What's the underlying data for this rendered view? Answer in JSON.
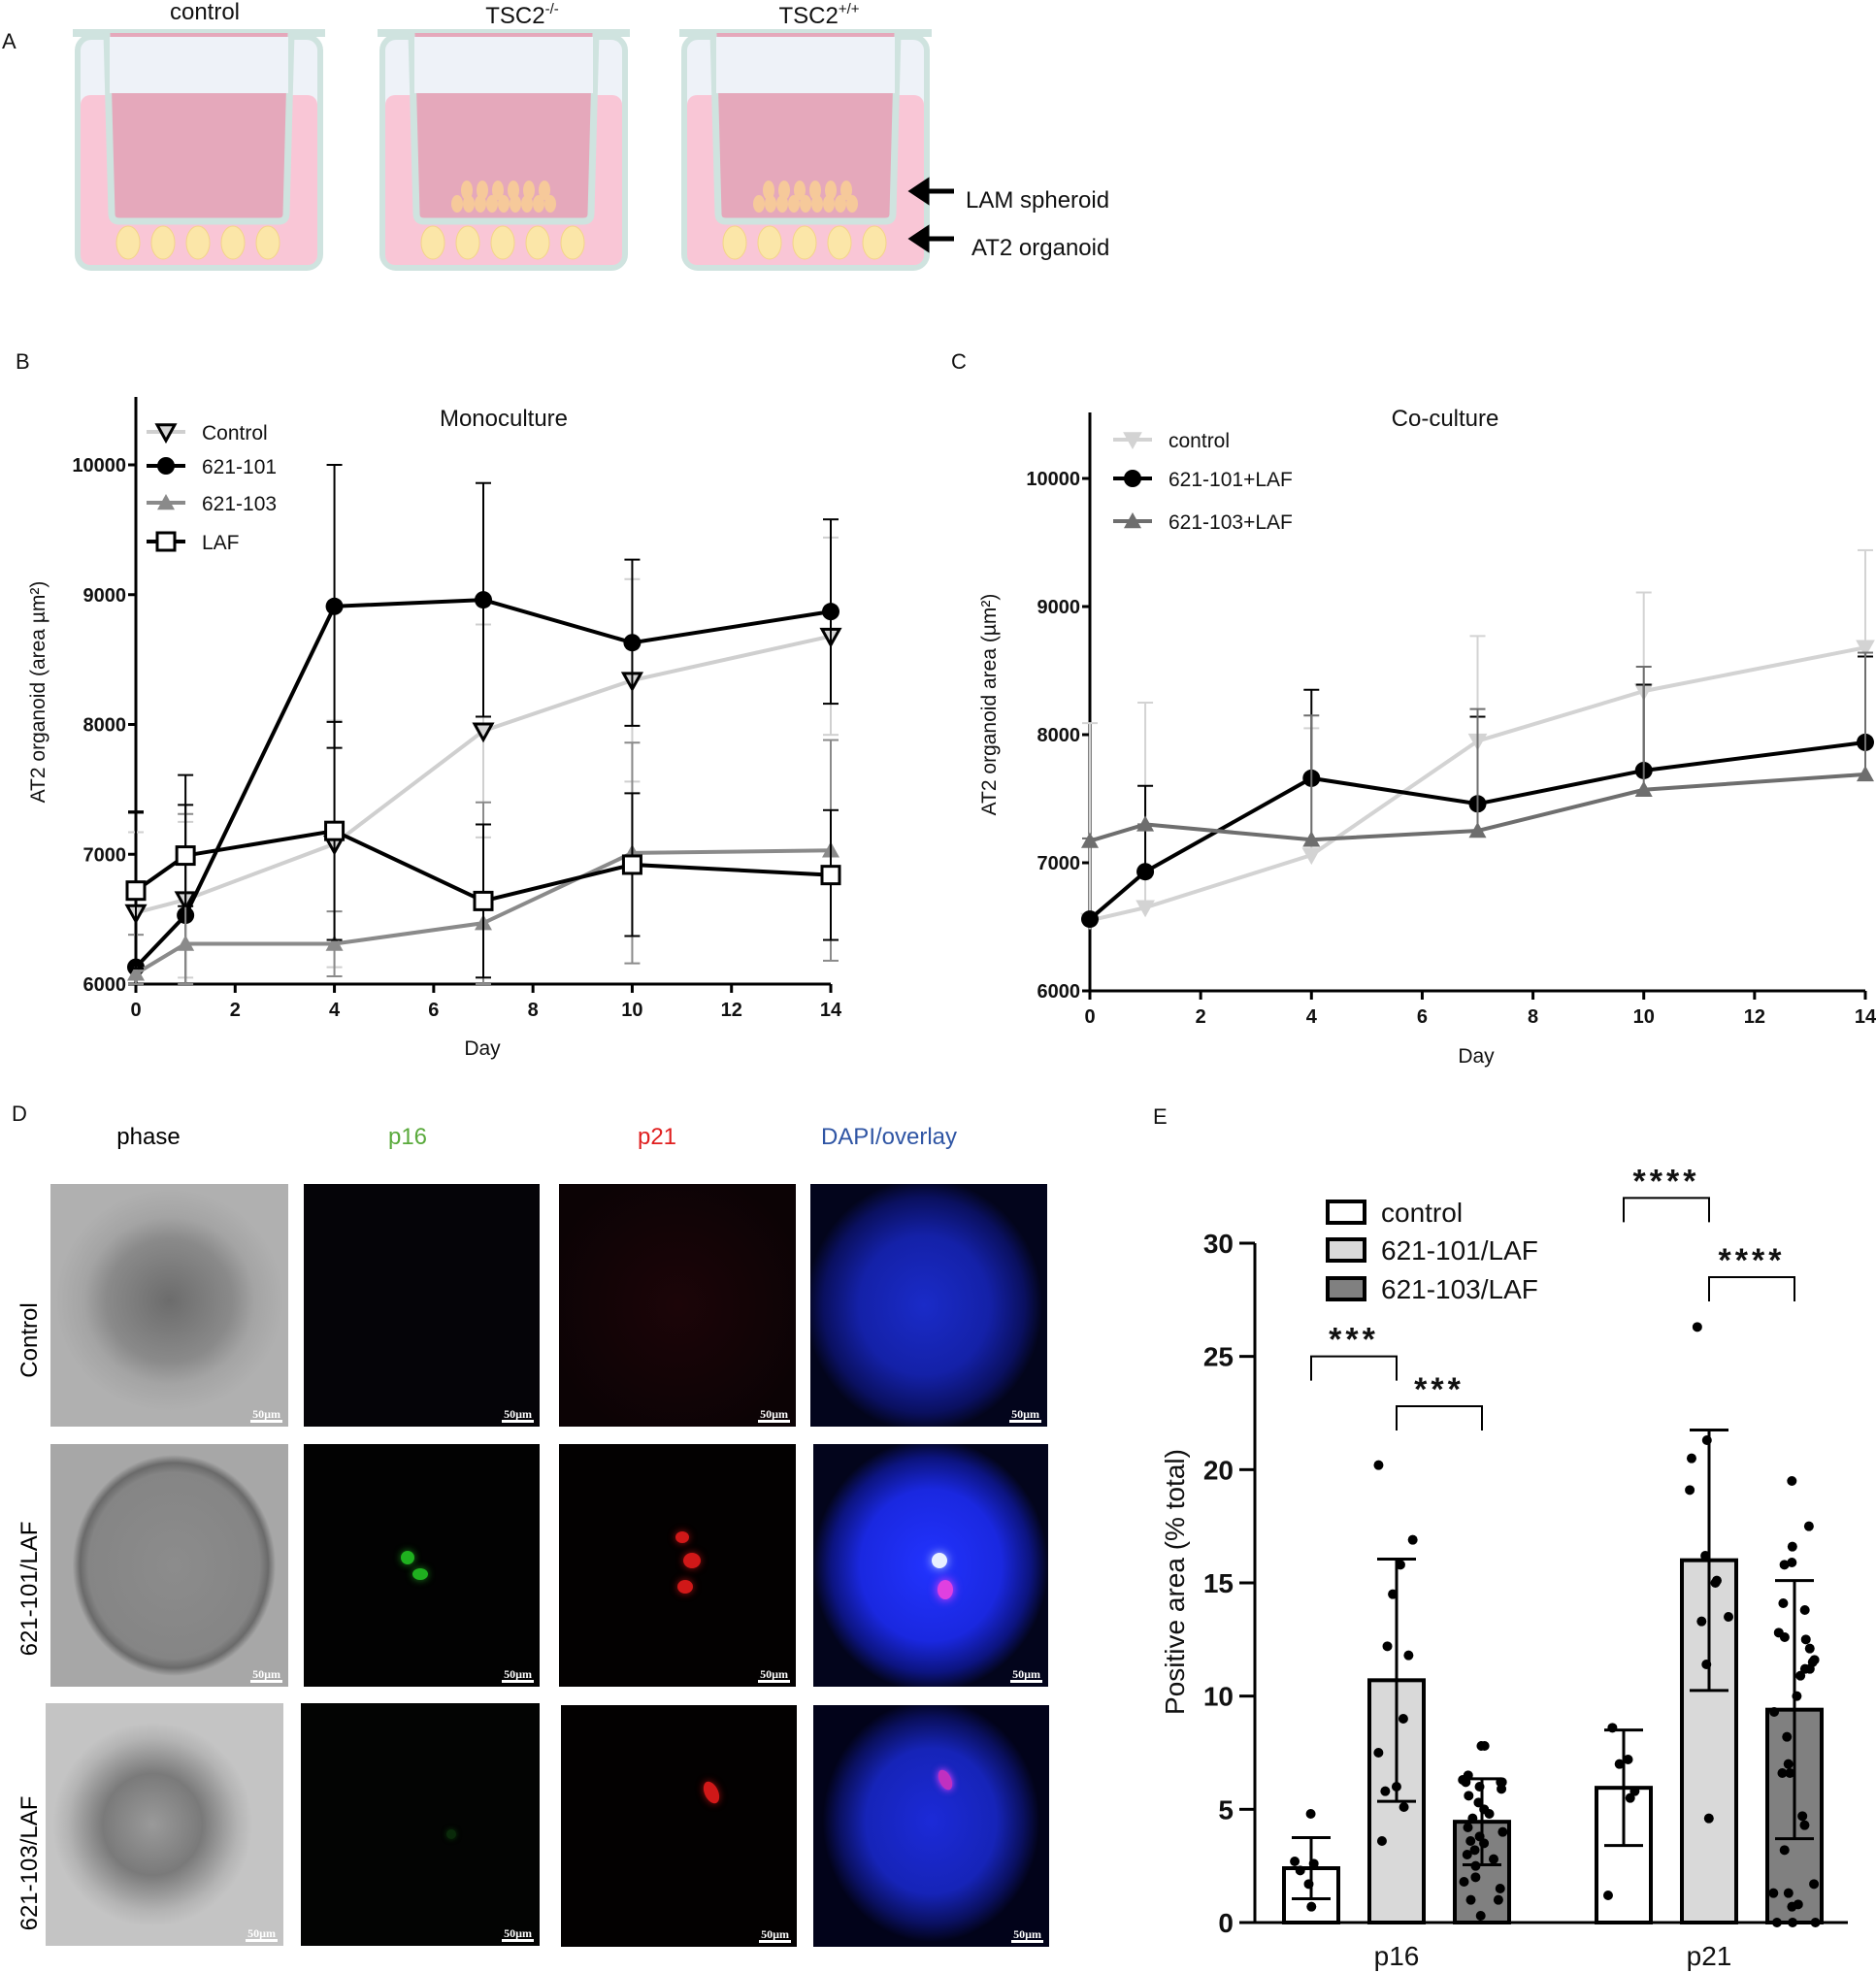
{
  "panels": {
    "a": "A",
    "b": "B",
    "c": "C",
    "d": "D",
    "e": "E"
  },
  "panel_a": {
    "wells": [
      "control",
      "TSC2",
      "TSC2"
    ],
    "well_superscripts": [
      "",
      "-/-",
      "+/+"
    ],
    "annotations": [
      "LAM spheroid",
      "AT2 organoid"
    ],
    "colors": {
      "medium": "#f9c6d6",
      "insert": "#e5a8bb",
      "organoid": "#fbe6a8",
      "spheroid": "#f6c99a",
      "wall": "#cfe3df"
    }
  },
  "panel_d": {
    "headers": [
      "phase",
      "p16",
      "p21",
      "DAPI/overlay"
    ],
    "header_colors": [
      "#111111",
      "#5aaa3c",
      "#e01f1f",
      "#2f55a4"
    ],
    "rows": [
      "Control",
      "621-101/LAF",
      "621-103/LAF"
    ],
    "scale_bar": "50µm"
  },
  "chart_data": [
    {
      "id": "B",
      "type": "line",
      "title": "Monoculture",
      "xlabel": "Day",
      "ylabel": "AT2 organoid (area µm²)",
      "xlim": [
        0,
        14
      ],
      "ylim": [
        6000,
        10500
      ],
      "xticks": [
        "0",
        "2",
        "4",
        "6",
        "8",
        "10",
        "12",
        "14"
      ],
      "yticks": [
        "6000",
        "7000",
        "8000",
        "9000",
        "10000"
      ],
      "legend": "top-left",
      "x": [
        0,
        1,
        4,
        7,
        10,
        14
      ],
      "series": [
        {
          "name": "Control",
          "color": "#cfcfcf",
          "marker": "triangle-down-open",
          "values": [
            6550,
            6650,
            7080,
            7950,
            8340,
            8680
          ],
          "error": [
            620,
            600,
            950,
            820,
            780,
            760
          ]
        },
        {
          "name": "621-101",
          "color": "#000000",
          "marker": "circle",
          "values": [
            6130,
            6530,
            8910,
            8960,
            8630,
            8870
          ],
          "error": [
            1200,
            1080,
            1090,
            900,
            640,
            710
          ]
        },
        {
          "name": "621-103",
          "color": "#8a8a8a",
          "marker": "triangle-up",
          "values": [
            6080,
            6310,
            6310,
            6470,
            7010,
            7030
          ],
          "error": [
            300,
            1000,
            250,
            930,
            850,
            850
          ]
        },
        {
          "name": "LAF",
          "color": "#000000",
          "marker": "square-open",
          "values": [
            6720,
            6990,
            7180,
            6640,
            6920,
            6840
          ],
          "error": [
            600,
            390,
            840,
            590,
            550,
            500
          ]
        }
      ]
    },
    {
      "id": "C",
      "type": "line",
      "title": "Co-culture",
      "xlabel": "Day",
      "ylabel": "AT2 organoid area (µm²)",
      "xlim": [
        0,
        14
      ],
      "ylim": [
        6000,
        10500
      ],
      "xticks": [
        "0",
        "2",
        "4",
        "6",
        "8",
        "10",
        "12",
        "14"
      ],
      "yticks": [
        "6000",
        "7000",
        "8000",
        "9000",
        "10000"
      ],
      "legend": "top-left",
      "x": [
        0,
        1,
        4,
        7,
        10,
        14
      ],
      "series": [
        {
          "name": "control",
          "color": "#d3d3d3",
          "marker": "triangle-down",
          "values": [
            6550,
            6650,
            7060,
            7950,
            8340,
            8680
          ],
          "error_upper": [
            1540,
            1600,
            990,
            820,
            770,
            760
          ]
        },
        {
          "name": "621-101+LAF",
          "color": "#000000",
          "marker": "circle",
          "values": [
            6560,
            6930,
            7660,
            7460,
            7720,
            7940
          ],
          "error_upper": [
            0,
            670,
            690,
            680,
            670,
            670
          ]
        },
        {
          "name": "621-103+LAF",
          "color": "#6e6e6e",
          "marker": "triangle-up",
          "values": [
            7170,
            7300,
            7180,
            7250,
            7570,
            7690
          ],
          "error_upper": [
            20,
            0,
            970,
            950,
            960,
            950
          ]
        }
      ]
    },
    {
      "id": "E",
      "type": "bar",
      "ylabel": "Positive area (% total)",
      "ylim": [
        0,
        30
      ],
      "yticks": [
        "0",
        "5",
        "10",
        "15",
        "20",
        "25",
        "30"
      ],
      "categories": [
        "p16",
        "p21"
      ],
      "legend": "top-left",
      "series": [
        {
          "name": "control",
          "color": "#ffffff",
          "values": [
            2.4,
            5.95
          ],
          "error": [
            1.35,
            2.55
          ],
          "points": [
            [
              4.8,
              2.6,
              2.7,
              2.3,
              1.7,
              0.7
            ],
            [
              8.6,
              7.2,
              7.0,
              5.8,
              5.5,
              1.2
            ]
          ]
        },
        {
          "name": "621-101/LAF",
          "color": "#d9d9d9",
          "values": [
            10.7,
            16.0
          ],
          "error": [
            5.35,
            5.75
          ],
          "points": [
            [
              20.2,
              16.9,
              15.8,
              14.5,
              12.2,
              11.8,
              9.0,
              7.5,
              6.0,
              5.8,
              5.1,
              3.6
            ],
            [
              26.3,
              21.3,
              20.5,
              19.1,
              16.2,
              15.1,
              15.0,
              13.5,
              13.3,
              11.4,
              4.6
            ]
          ]
        },
        {
          "name": "621-103/LAF",
          "color": "#808080",
          "values": [
            4.45,
            9.4
          ],
          "error": [
            1.9,
            5.7
          ],
          "points": [
            [
              7.8,
              7.8,
              6.5,
              6.3,
              6.2,
              6.2,
              6.2,
              6.0,
              5.9,
              5.6,
              5.3,
              5.0,
              4.8,
              4.6,
              4.2,
              4.0,
              3.8,
              3.6,
              3.5,
              3.2,
              3.0,
              2.8,
              2.5,
              2.0,
              1.8,
              1.5,
              1.0,
              1.0,
              0.3
            ],
            [
              19.5,
              17.5,
              16.6,
              15.9,
              15.8,
              14.1,
              13.8,
              12.8,
              12.6,
              12.5,
              12.1,
              11.6,
              11.5,
              11.2,
              11.2,
              10.9,
              10.0,
              9.3,
              8.2,
              7.0,
              6.6,
              6.6,
              4.7,
              4.3,
              3.2,
              1.7,
              1.3,
              1.3,
              0.8,
              0.7,
              0,
              0,
              0
            ]
          ]
        }
      ],
      "significance": [
        {
          "category": "p16",
          "from": 0,
          "to": 1,
          "label": "***",
          "level": 25.0
        },
        {
          "category": "p16",
          "from": 1,
          "to": 2,
          "label": "***",
          "level": 22.8
        },
        {
          "category": "p21",
          "from": 0,
          "to": 1,
          "label": "****",
          "level": 32.0
        },
        {
          "category": "p21",
          "from": 1,
          "to": 2,
          "label": "****",
          "level": 28.5
        }
      ]
    }
  ]
}
